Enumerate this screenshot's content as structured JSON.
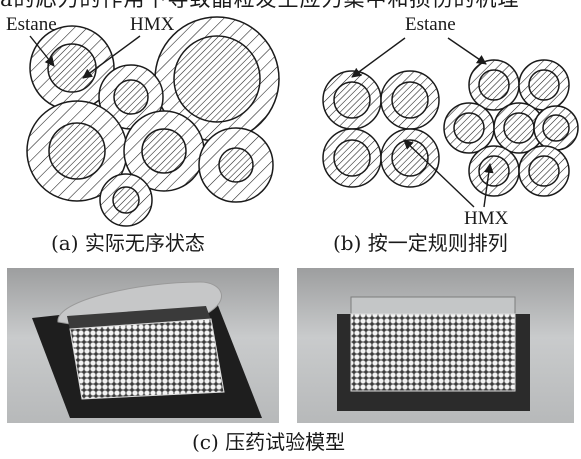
{
  "top_fragment": "a的応力的作用下导致晶粒发生应力集中和损伤的机理",
  "labels": {
    "estane_a": "Estane",
    "hmx_a": "HMX",
    "estane_b": "Estane",
    "hmx_b": "HMX"
  },
  "captions": {
    "a": "(a)  实际无序状态",
    "b": "(b)  按一定规则排列",
    "c": "(c)  压药试验模型"
  },
  "colors": {
    "line": "#1a1a1a",
    "panel_bg": "#a9aaab",
    "panel_mid": "#c7c9ca",
    "mold": "#1e1e1e",
    "grid": "#ececec"
  }
}
